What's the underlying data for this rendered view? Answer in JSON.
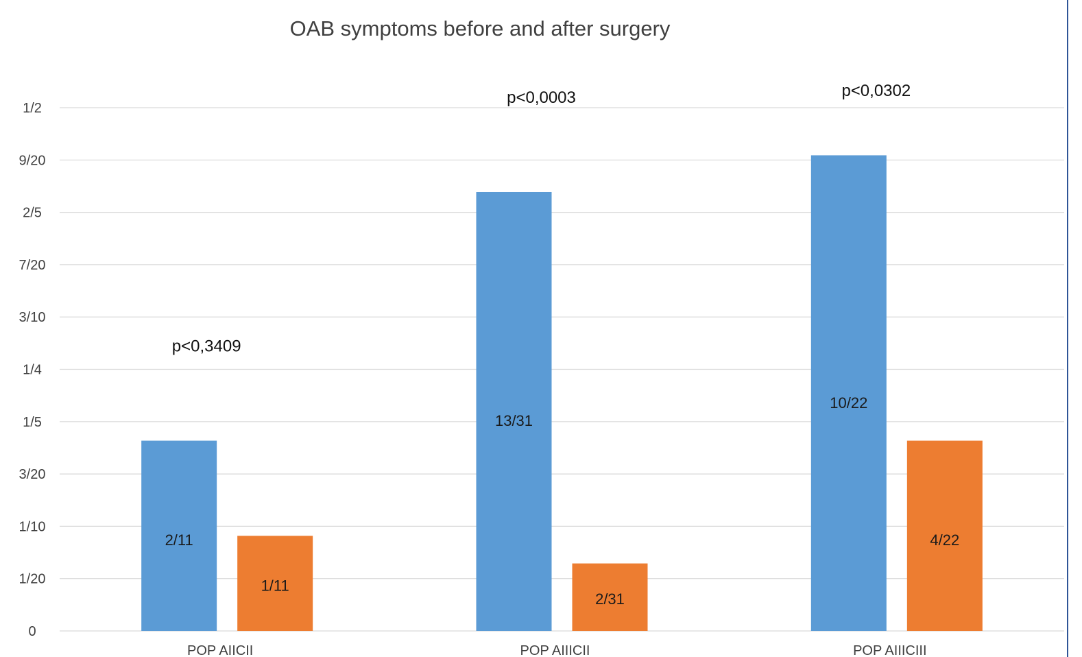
{
  "chart_data": {
    "type": "bar",
    "title": "OAB symptoms before and after surgery",
    "categories": [
      "POP AIICII",
      "POP AIIICII",
      "POP AIIICIII"
    ],
    "series": [
      {
        "values": [
          0.1818,
          0.4194,
          0.4545
        ],
        "labels": [
          "2/11",
          "13/31",
          "10/22"
        ],
        "color": "#5b9bd5"
      },
      {
        "values": [
          0.0909,
          0.0645,
          0.1818
        ],
        "labels": [
          "1/11",
          "2/31",
          "4/22"
        ],
        "color": "#ed7d31"
      }
    ],
    "annotations": [
      "p<0,3409",
      "p<0,0003",
      "p<0,0302"
    ],
    "yticks": [
      {
        "value": 0,
        "label": "0"
      },
      {
        "value": 0.05,
        "label": "1/20"
      },
      {
        "value": 0.1,
        "label": "1/10"
      },
      {
        "value": 0.15,
        "label": "3/20"
      },
      {
        "value": 0.2,
        "label": "1/5"
      },
      {
        "value": 0.25,
        "label": "1/4"
      },
      {
        "value": 0.3,
        "label": "3/10"
      },
      {
        "value": 0.35,
        "label": "7/20"
      },
      {
        "value": 0.4,
        "label": "2/5"
      },
      {
        "value": 0.45,
        "label": "9/20"
      },
      {
        "value": 0.5,
        "label": "1/2"
      }
    ],
    "ylim": [
      0,
      0.5
    ],
    "xlabel": "",
    "ylabel": "",
    "grid": true,
    "colors": {
      "gridline": "#d9d9d9",
      "text": "#404040",
      "border": "#2f5597"
    }
  }
}
